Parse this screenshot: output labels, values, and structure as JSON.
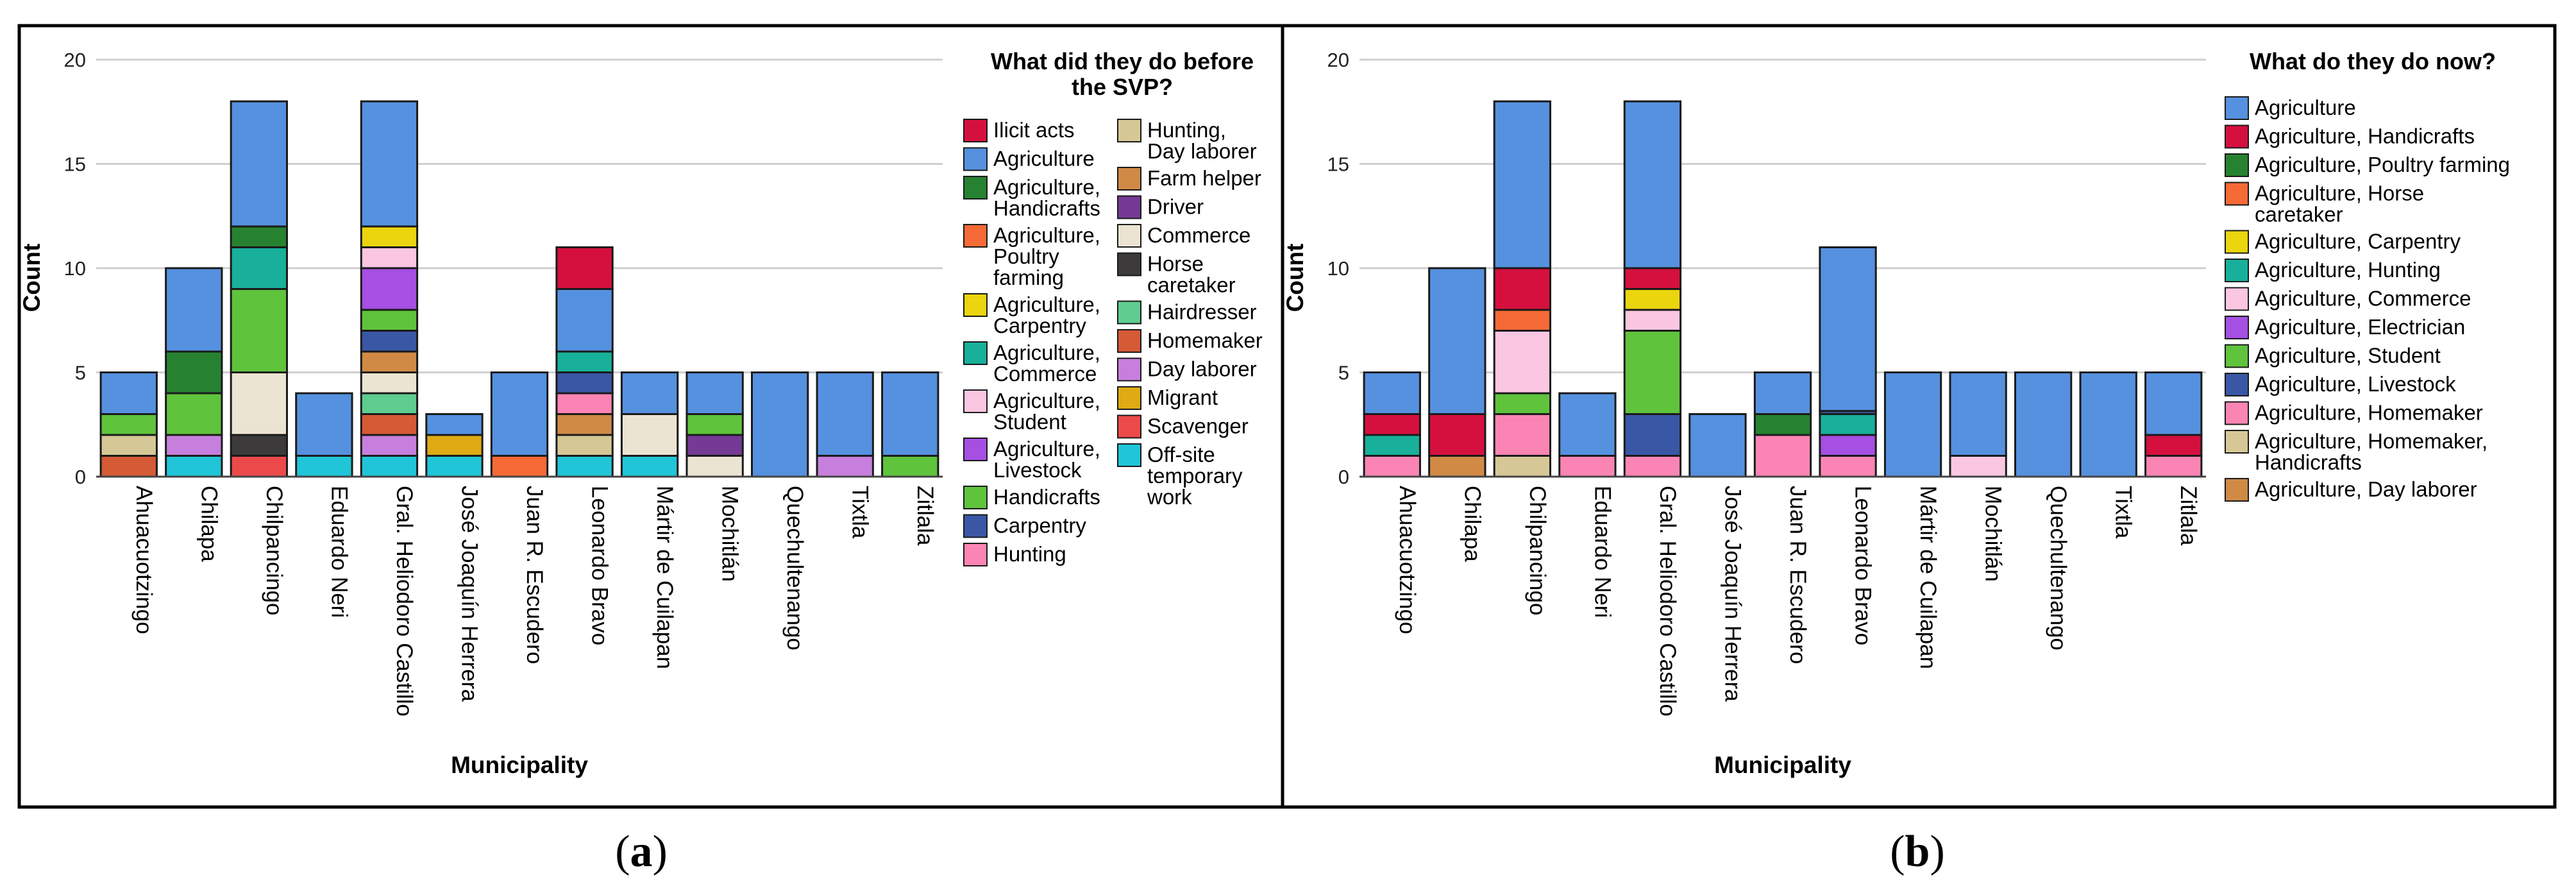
{
  "colors": {
    "Ilicit acts": "#d6103e",
    "Agriculture": "#5591df",
    "Agriculture, Handicrafts": "#268230",
    "Agriculture, Poultry farming": "#f56a36",
    "Agriculture, Carpentry": "#ead50e",
    "Agriculture, Commerce": "#18b09a",
    "Agriculture, Student": "#fbc6e2",
    "Agriculture, Livestock": "#a54fe3",
    "Handicrafts": "#5fc33c",
    "Carpentry": "#3a57a5",
    "Hunting": "#fa85b4",
    "Hunting, Day laborer": "#d6c896",
    "Farm helper": "#d08a46",
    "Driver": "#743a95",
    "Commerce": "#ece4d2",
    "Horse caretaker": "#3c3a3a",
    "Hairdresser": "#5fcd8f",
    "Homemaker": "#d55a36",
    "Day laborer": "#c77fdd",
    "Migrant": "#dfaa14",
    "Scavenger": "#ec4a4a",
    "Off-site temporary work": "#20c5d8",
    "Agriculture, Horse caretaker": "#f56a36",
    "Agriculture, Hunting": "#18b09a",
    "Agriculture, Electrician": "#a54fe3",
    "Agriculture, Homemaker": "#fa85b4",
    "Agriculture, Homemaker, Handicrafts": "#d6c896",
    "Agriculture, Day laborer": "#d08a46"
  },
  "chart_data": [
    {
      "type": "bar",
      "stacked": true,
      "panel_label": "a",
      "title": "What did they do before the SVP?",
      "title_lines": [
        "What did they do before",
        "the SVP?"
      ],
      "xlabel": "Municipality",
      "ylabel": "Count",
      "ylim": [
        0,
        20
      ],
      "yticks": [
        0,
        5,
        10,
        15,
        20
      ],
      "grid": true,
      "legend_position": "right",
      "categories": [
        "Ahuacuotzingo",
        "Chilapa",
        "Chilpancingo",
        "Eduardo Neri",
        "Gral. Heliodoro Castillo",
        "José Joaquín Herrera",
        "Juan R. Escudero",
        "Leonardo Bravo",
        "Mártir de Cuilapan",
        "Mochitlán",
        "Quechultenango",
        "Tixtla",
        "Zitlala"
      ],
      "legend": [
        {
          "key": "Ilicit acts",
          "lines": [
            "Ilicit acts"
          ]
        },
        {
          "key": "Agriculture",
          "lines": [
            "Agriculture"
          ]
        },
        {
          "key": "Agriculture, Handicrafts",
          "lines": [
            "Agriculture,",
            "Handicrafts"
          ]
        },
        {
          "key": "Agriculture, Poultry farming",
          "lines": [
            "Agriculture,",
            "Poultry",
            "farming"
          ]
        },
        {
          "key": "Agriculture, Carpentry",
          "lines": [
            "Agriculture,",
            "Carpentry"
          ]
        },
        {
          "key": "Agriculture, Commerce",
          "lines": [
            "Agriculture,",
            "Commerce"
          ]
        },
        {
          "key": "Agriculture, Student",
          "lines": [
            "Agriculture,",
            "Student"
          ]
        },
        {
          "key": "Agriculture, Livestock",
          "lines": [
            "Agriculture,",
            "Livestock"
          ]
        },
        {
          "key": "Handicrafts",
          "lines": [
            "Handicrafts"
          ]
        },
        {
          "key": "Carpentry",
          "lines": [
            "Carpentry"
          ]
        },
        {
          "key": "Hunting",
          "lines": [
            "Hunting"
          ]
        },
        {
          "key": "Hunting, Day laborer",
          "lines": [
            "Hunting,",
            "Day laborer"
          ]
        },
        {
          "key": "Farm helper",
          "lines": [
            "Farm helper"
          ]
        },
        {
          "key": "Driver",
          "lines": [
            "Driver"
          ]
        },
        {
          "key": "Commerce",
          "lines": [
            "Commerce"
          ]
        },
        {
          "key": "Horse caretaker",
          "lines": [
            "Horse",
            "caretaker"
          ]
        },
        {
          "key": "Hairdresser",
          "lines": [
            "Hairdresser"
          ]
        },
        {
          "key": "Homemaker",
          "lines": [
            "Homemaker"
          ]
        },
        {
          "key": "Day laborer",
          "lines": [
            "Day laborer"
          ]
        },
        {
          "key": "Migrant",
          "lines": [
            "Migrant"
          ]
        },
        {
          "key": "Scavenger",
          "lines": [
            "Scavenger"
          ]
        },
        {
          "key": "Off-site temporary work",
          "lines": [
            "Off-site",
            "temporary",
            "work"
          ]
        }
      ],
      "stacks": [
        [
          {
            "s": "Homemaker",
            "v": 1
          },
          {
            "s": "Hunting, Day laborer",
            "v": 1
          },
          {
            "s": "Handicrafts",
            "v": 1
          },
          {
            "s": "Agriculture",
            "v": 2
          }
        ],
        [
          {
            "s": "Off-site temporary work",
            "v": 1
          },
          {
            "s": "Day laborer",
            "v": 1
          },
          {
            "s": "Handicrafts",
            "v": 2
          },
          {
            "s": "Agriculture, Handicrafts",
            "v": 2
          },
          {
            "s": "Agriculture",
            "v": 4
          }
        ],
        [
          {
            "s": "Scavenger",
            "v": 1
          },
          {
            "s": "Horse caretaker",
            "v": 1
          },
          {
            "s": "Commerce",
            "v": 3
          },
          {
            "s": "Handicrafts",
            "v": 4
          },
          {
            "s": "Agriculture, Commerce",
            "v": 2
          },
          {
            "s": "Agriculture, Handicrafts",
            "v": 1
          },
          {
            "s": "Agriculture",
            "v": 6
          }
        ],
        [
          {
            "s": "Off-site temporary work",
            "v": 1
          },
          {
            "s": "Agriculture",
            "v": 3
          }
        ],
        [
          {
            "s": "Off-site temporary work",
            "v": 1
          },
          {
            "s": "Day laborer",
            "v": 1
          },
          {
            "s": "Homemaker",
            "v": 1
          },
          {
            "s": "Hairdresser",
            "v": 1
          },
          {
            "s": "Commerce",
            "v": 1
          },
          {
            "s": "Farm helper",
            "v": 1
          },
          {
            "s": "Carpentry",
            "v": 1
          },
          {
            "s": "Handicrafts",
            "v": 1
          },
          {
            "s": "Agriculture, Livestock",
            "v": 2
          },
          {
            "s": "Agriculture, Student",
            "v": 1
          },
          {
            "s": "Agriculture, Carpentry",
            "v": 1
          },
          {
            "s": "Agriculture",
            "v": 6
          }
        ],
        [
          {
            "s": "Off-site temporary work",
            "v": 1
          },
          {
            "s": "Migrant",
            "v": 1
          },
          {
            "s": "Agriculture",
            "v": 1
          }
        ],
        [
          {
            "s": "Agriculture, Poultry farming",
            "v": 1
          },
          {
            "s": "Agriculture",
            "v": 4
          }
        ],
        [
          {
            "s": "Off-site temporary work",
            "v": 1
          },
          {
            "s": "Hunting, Day laborer",
            "v": 1
          },
          {
            "s": "Farm helper",
            "v": 1
          },
          {
            "s": "Hunting",
            "v": 1
          },
          {
            "s": "Carpentry",
            "v": 1
          },
          {
            "s": "Agriculture, Commerce",
            "v": 1
          },
          {
            "s": "Agriculture",
            "v": 3
          },
          {
            "s": "Ilicit acts",
            "v": 2
          }
        ],
        [
          {
            "s": "Off-site temporary work",
            "v": 1
          },
          {
            "s": "Commerce",
            "v": 2
          },
          {
            "s": "Agriculture",
            "v": 2
          }
        ],
        [
          {
            "s": "Commerce",
            "v": 1
          },
          {
            "s": "Driver",
            "v": 1
          },
          {
            "s": "Handicrafts",
            "v": 1
          },
          {
            "s": "Agriculture",
            "v": 2
          }
        ],
        [
          {
            "s": "Agriculture",
            "v": 5
          }
        ],
        [
          {
            "s": "Day laborer",
            "v": 1
          },
          {
            "s": "Agriculture",
            "v": 4
          }
        ],
        [
          {
            "s": "Handicrafts",
            "v": 1
          },
          {
            "s": "Agriculture",
            "v": 4
          }
        ]
      ]
    },
    {
      "type": "bar",
      "stacked": true,
      "panel_label": "b",
      "title": "What do they do now?",
      "title_lines": [
        "What do they do now?"
      ],
      "xlabel": "Municipality",
      "ylabel": "Count",
      "ylim": [
        0,
        20
      ],
      "yticks": [
        0,
        5,
        10,
        15,
        20
      ],
      "grid": true,
      "legend_position": "right",
      "categories": [
        "Ahuacuotzingo",
        "Chilapa",
        "Chilpancingo",
        "Eduardo Neri",
        "Gral. Heliodoro Castillo",
        "José Joaquín Herrera",
        "Juan R. Escudero",
        "Leonardo Bravo",
        "Mártir de Cuilapan",
        "Mochitlán",
        "Quechultenango",
        "Tixtla",
        "Zitlala"
      ],
      "legend": [
        {
          "key": "Agriculture",
          "lines": [
            "Agriculture"
          ]
        },
        {
          "key": "Agriculture, Handicrafts",
          "lines": [
            "Agriculture, Handicrafts"
          ],
          "color": "#d6103e"
        },
        {
          "key": "Agriculture, Poultry farming",
          "lines": [
            "Agriculture, Poultry farming"
          ],
          "color": "#268230"
        },
        {
          "key": "Agriculture, Horse caretaker",
          "lines": [
            "Agriculture, Horse",
            "caretaker"
          ]
        },
        {
          "key": "Agriculture, Carpentry",
          "lines": [
            "Agriculture, Carpentry"
          ]
        },
        {
          "key": "Agriculture, Hunting",
          "lines": [
            "Agriculture, Hunting"
          ]
        },
        {
          "key": "Agriculture, Commerce",
          "lines": [
            "Agriculture, Commerce"
          ],
          "color": "#fbc6e2"
        },
        {
          "key": "Agriculture, Electrician",
          "lines": [
            "Agriculture, Electrician"
          ]
        },
        {
          "key": "Agriculture, Student",
          "lines": [
            "Agriculture, Student"
          ],
          "color": "#5fc33c"
        },
        {
          "key": "Agriculture, Livestock",
          "lines": [
            "Agriculture, Livestock"
          ],
          "color": "#3a57a5"
        },
        {
          "key": "Agriculture, Homemaker",
          "lines": [
            "Agriculture, Homemaker"
          ]
        },
        {
          "key": "Agriculture, Homemaker, Handicrafts",
          "lines": [
            "Agriculture, Homemaker,",
            "Handicrafts"
          ]
        },
        {
          "key": "Agriculture, Day laborer",
          "lines": [
            "Agriculture, Day laborer"
          ]
        }
      ],
      "stacks": [
        [
          {
            "s": "Agriculture, Homemaker",
            "v": 1
          },
          {
            "s": "Agriculture, Hunting",
            "v": 1
          },
          {
            "s": "Agriculture, Handicrafts",
            "v": 1
          },
          {
            "s": "Agriculture",
            "v": 2
          }
        ],
        [
          {
            "s": "Agriculture, Day laborer",
            "v": 1
          },
          {
            "s": "Agriculture, Handicrafts",
            "v": 2
          },
          {
            "s": "Agriculture",
            "v": 7
          }
        ],
        [
          {
            "s": "Agriculture, Homemaker, Handicrafts",
            "v": 1
          },
          {
            "s": "Agriculture, Homemaker",
            "v": 2
          },
          {
            "s": "Agriculture, Student",
            "v": 1
          },
          {
            "s": "Agriculture, Commerce",
            "v": 3
          },
          {
            "s": "Agriculture, Horse caretaker",
            "v": 1
          },
          {
            "s": "Agriculture, Handicrafts",
            "v": 2
          },
          {
            "s": "Agriculture",
            "v": 8
          }
        ],
        [
          {
            "s": "Agriculture, Homemaker",
            "v": 1
          },
          {
            "s": "Agriculture",
            "v": 3
          }
        ],
        [
          {
            "s": "Agriculture, Homemaker",
            "v": 1
          },
          {
            "s": "Agriculture, Livestock",
            "v": 2
          },
          {
            "s": "Agriculture, Student",
            "v": 4
          },
          {
            "s": "Agriculture, Commerce",
            "v": 1
          },
          {
            "s": "Agriculture, Carpentry",
            "v": 1
          },
          {
            "s": "Agriculture, Handicrafts",
            "v": 1
          },
          {
            "s": "Agriculture",
            "v": 8
          }
        ],
        [
          {
            "s": "Agriculture",
            "v": 3
          }
        ],
        [
          {
            "s": "Agriculture, Homemaker",
            "v": 2
          },
          {
            "s": "Agriculture, Poultry farming",
            "v": 1
          },
          {
            "s": "Agriculture",
            "v": 2
          }
        ],
        [
          {
            "s": "Agriculture, Homemaker",
            "v": 1
          },
          {
            "s": "Agriculture, Electrician",
            "v": 1
          },
          {
            "s": "Agriculture, Hunting",
            "v": 1
          },
          {
            "s": "Agriculture, Livestock",
            "v": 0.15
          },
          {
            "s": "Agriculture",
            "v": 7.85
          }
        ],
        [
          {
            "s": "Agriculture",
            "v": 5
          }
        ],
        [
          {
            "s": "Agriculture, Commerce",
            "v": 1
          },
          {
            "s": "Agriculture",
            "v": 4
          }
        ],
        [
          {
            "s": "Agriculture",
            "v": 5
          }
        ],
        [
          {
            "s": "Agriculture",
            "v": 5
          }
        ],
        [
          {
            "s": "Agriculture, Homemaker",
            "v": 1
          },
          {
            "s": "Agriculture, Handicrafts",
            "v": 1
          },
          {
            "s": "Agriculture",
            "v": 3
          }
        ]
      ]
    }
  ]
}
